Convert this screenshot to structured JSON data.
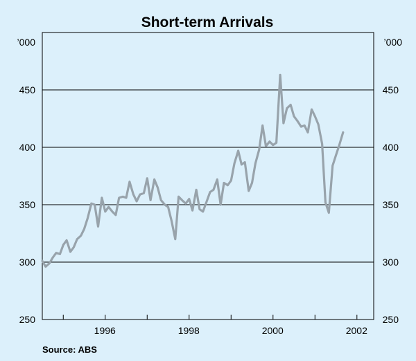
{
  "chart_data": {
    "type": "line",
    "title": "Short-term Arrivals",
    "y_unit_left": "’000",
    "y_unit_right": "’000",
    "ylim": [
      250,
      500
    ],
    "yticks": [
      "250",
      "300",
      "350",
      "400",
      "450"
    ],
    "yticks_right": [
      "250",
      "300",
      "350",
      "400",
      "450"
    ],
    "xlim": [
      1994.5,
      2002.4
    ],
    "xticks": [
      "1996",
      "1998",
      "2000",
      "2002"
    ],
    "grid": "horizontal",
    "source": "Source: ABS",
    "series": [
      {
        "color": "#98a3ab",
        "points": [
          [
            1994.5,
            301
          ],
          [
            1994.58,
            296
          ],
          [
            1994.67,
            299
          ],
          [
            1994.75,
            304
          ],
          [
            1994.83,
            308
          ],
          [
            1994.92,
            307
          ],
          [
            1995.0,
            315
          ],
          [
            1995.08,
            319
          ],
          [
            1995.17,
            309
          ],
          [
            1995.25,
            313
          ],
          [
            1995.33,
            320
          ],
          [
            1995.42,
            323
          ],
          [
            1995.5,
            329
          ],
          [
            1995.58,
            338
          ],
          [
            1995.67,
            351
          ],
          [
            1995.75,
            350
          ],
          [
            1995.83,
            331
          ],
          [
            1995.92,
            356
          ],
          [
            1996.0,
            344
          ],
          [
            1996.08,
            348
          ],
          [
            1996.17,
            344
          ],
          [
            1996.25,
            341
          ],
          [
            1996.33,
            356
          ],
          [
            1996.42,
            357
          ],
          [
            1996.5,
            356
          ],
          [
            1996.58,
            370
          ],
          [
            1996.67,
            359
          ],
          [
            1996.75,
            353
          ],
          [
            1996.83,
            359
          ],
          [
            1996.92,
            360
          ],
          [
            1997.0,
            373
          ],
          [
            1997.08,
            354
          ],
          [
            1997.17,
            372
          ],
          [
            1997.25,
            365
          ],
          [
            1997.33,
            354
          ],
          [
            1997.42,
            350
          ],
          [
            1997.5,
            348
          ],
          [
            1997.58,
            336
          ],
          [
            1997.67,
            320
          ],
          [
            1997.75,
            357
          ],
          [
            1997.83,
            354
          ],
          [
            1997.92,
            351
          ],
          [
            1998.0,
            355
          ],
          [
            1998.08,
            345
          ],
          [
            1998.17,
            363
          ],
          [
            1998.25,
            346
          ],
          [
            1998.33,
            344
          ],
          [
            1998.42,
            353
          ],
          [
            1998.5,
            361
          ],
          [
            1998.58,
            363
          ],
          [
            1998.67,
            372
          ],
          [
            1998.75,
            350
          ],
          [
            1998.83,
            369
          ],
          [
            1998.92,
            367
          ],
          [
            1999.0,
            371
          ],
          [
            1999.08,
            386
          ],
          [
            1999.17,
            397
          ],
          [
            1999.25,
            385
          ],
          [
            1999.33,
            387
          ],
          [
            1999.42,
            362
          ],
          [
            1999.5,
            369
          ],
          [
            1999.58,
            386
          ],
          [
            1999.67,
            398
          ],
          [
            1999.75,
            419
          ],
          [
            1999.83,
            401
          ],
          [
            1999.92,
            405
          ],
          [
            2000.0,
            402
          ],
          [
            2000.08,
            404
          ],
          [
            2000.17,
            463
          ],
          [
            2000.25,
            421
          ],
          [
            2000.33,
            434
          ],
          [
            2000.42,
            437
          ],
          [
            2000.5,
            427
          ],
          [
            2000.58,
            423
          ],
          [
            2000.67,
            418
          ],
          [
            2000.75,
            419
          ],
          [
            2000.83,
            413
          ],
          [
            2000.92,
            433
          ],
          [
            2001.0,
            427
          ],
          [
            2001.08,
            420
          ],
          [
            2001.17,
            403
          ],
          [
            2001.25,
            352
          ],
          [
            2001.33,
            343
          ],
          [
            2001.42,
            384
          ],
          [
            2001.5,
            393
          ],
          [
            2001.58,
            402
          ],
          [
            2001.67,
            413
          ]
        ]
      }
    ]
  }
}
